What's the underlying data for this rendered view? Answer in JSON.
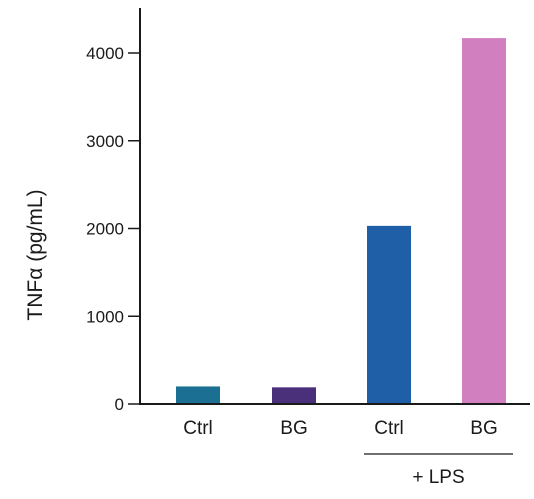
{
  "chart_data": {
    "type": "bar",
    "categories": [
      "Ctrl",
      "BG",
      "Ctrl",
      "BG"
    ],
    "values": [
      200,
      190,
      2030,
      4170
    ],
    "bar_colors": [
      "#1b6f92",
      "#4a2f7a",
      "#1f5fa8",
      "#d17fbf"
    ],
    "ylabel": "TNFα (pg/mL)",
    "xlabel": "",
    "ylim": [
      0,
      4200
    ],
    "yticks": [
      0,
      1000,
      2000,
      3000,
      4000
    ],
    "ytick_labels": [
      "0",
      "1000",
      "2000",
      "3000",
      "4000"
    ],
    "grid": false,
    "group_label": {
      "text": "+ LPS",
      "span_categories": [
        2,
        3
      ]
    }
  }
}
